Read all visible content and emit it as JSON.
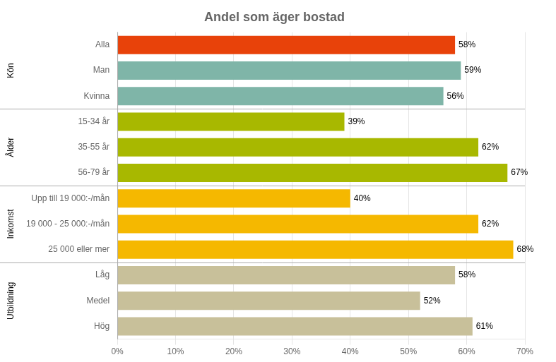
{
  "chart_data": {
    "type": "bar",
    "orientation": "horizontal",
    "title": "Andel som äger bostad",
    "categories": [
      "Alla",
      "Man",
      "Kvinna",
      "15-34 år",
      "35-55 år",
      "56-79 år",
      "Upp till 19 000:-/mån",
      "19 000 - 25 000:-/mån",
      "25 000 eller mer",
      "Låg",
      "Medel",
      "Hög"
    ],
    "values": [
      58,
      59,
      56,
      39,
      62,
      67,
      40,
      62,
      68,
      58,
      52,
      61
    ],
    "value_labels": [
      "58%",
      "59%",
      "56%",
      "39%",
      "62%",
      "67%",
      "40%",
      "62%",
      "68%",
      "58%",
      "52%",
      "61%"
    ],
    "data_labels": true,
    "colors": [
      "#e8420a",
      "#7fb5a8",
      "#7fb5a8",
      "#a8b800",
      "#a8b800",
      "#a8b800",
      "#f5b800",
      "#f5b800",
      "#f5b800",
      "#c8c09a",
      "#c8c09a",
      "#c8c09a"
    ],
    "groups": [
      {
        "label": "Kön",
        "categories": [
          "Alla",
          "Man",
          "Kvinna"
        ]
      },
      {
        "label": "Ålder",
        "categories": [
          "15-34 år",
          "35-55 år",
          "56-79 år"
        ]
      },
      {
        "label": "Inkomst",
        "categories": [
          "Upp till 19 000:-/mån",
          "19 000 - 25 000:-/mån",
          "25 000 eller mer"
        ]
      },
      {
        "label": "Utbildning",
        "categories": [
          "Låg",
          "Medel",
          "Hög"
        ]
      }
    ],
    "xlim": [
      0,
      70
    ],
    "xticks": [
      {
        "value": 0,
        "label": "0%"
      },
      {
        "value": 10,
        "label": "10%"
      },
      {
        "value": 20,
        "label": "20%"
      },
      {
        "value": 30,
        "label": "30%"
      },
      {
        "value": 40,
        "label": "40%"
      },
      {
        "value": 50,
        "label": "50%"
      },
      {
        "value": 60,
        "label": "60%"
      },
      {
        "value": 70,
        "label": "70%"
      }
    ],
    "grid": true
  }
}
